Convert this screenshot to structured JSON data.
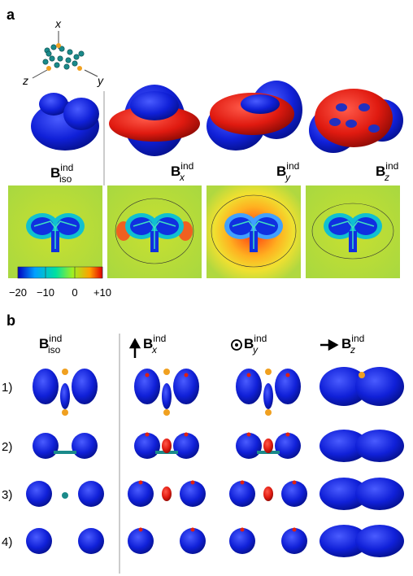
{
  "panel_a": {
    "label": "a",
    "axes": {
      "x": "x",
      "y": "y",
      "z": "z"
    },
    "columns": [
      {
        "symbol": "B",
        "superscript": "ind",
        "subscript": "iso"
      },
      {
        "symbol": "B",
        "superscript": "ind",
        "subscript": "x"
      },
      {
        "symbol": "B",
        "superscript": "ind",
        "subscript": "y"
      },
      {
        "symbol": "B",
        "superscript": "ind",
        "subscript": "z"
      }
    ],
    "colorbar": {
      "ticks": [
        "−20",
        "−10",
        "0",
        "+10"
      ]
    }
  },
  "panel_b": {
    "label": "b",
    "columns": [
      {
        "symbol": "B",
        "superscript": "ind",
        "subscript": "iso"
      },
      {
        "symbol": "B",
        "superscript": "ind",
        "subscript": "x"
      },
      {
        "symbol": "B",
        "superscript": "ind",
        "subscript": "y"
      },
      {
        "symbol": "B",
        "superscript": "ind",
        "subscript": "z"
      }
    ],
    "rows": [
      "1)",
      "2)",
      "3)",
      "4)"
    ]
  }
}
